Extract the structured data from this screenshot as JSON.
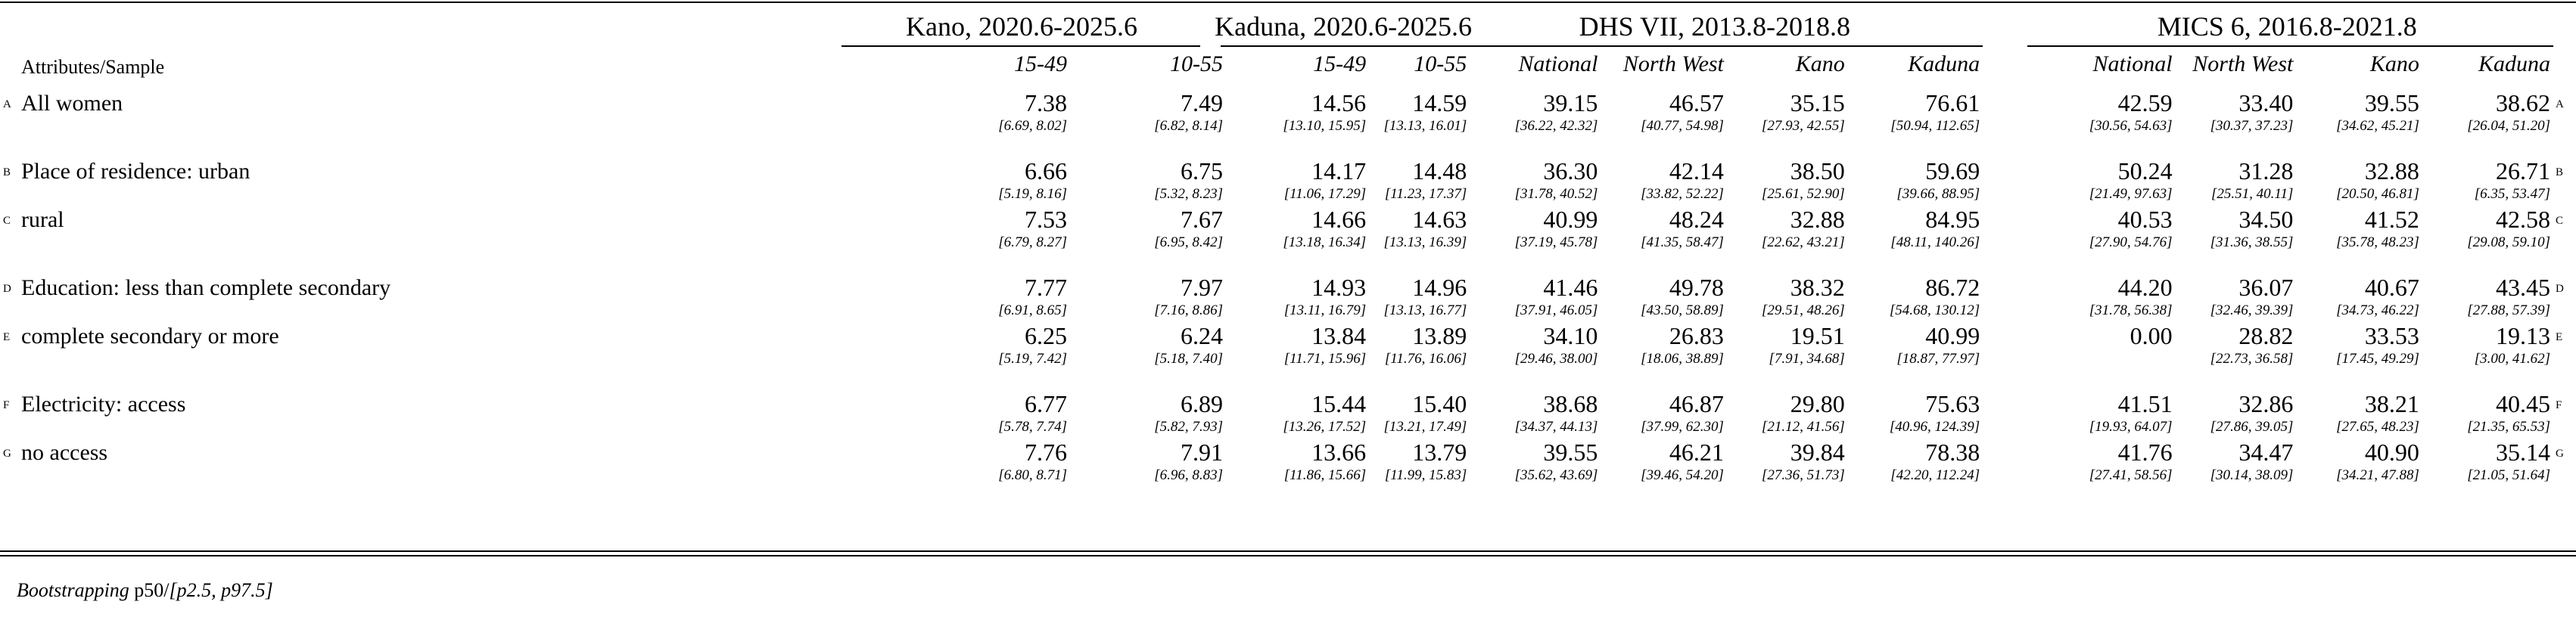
{
  "header": {
    "groups": [
      {
        "title": "Kano, 2020.6-2025.6",
        "subs": [
          "15-49",
          "10-55"
        ]
      },
      {
        "title": "Kaduna, 2020.6-2025.6",
        "subs": [
          "15-49",
          "10-55"
        ]
      },
      {
        "title": "DHS VII, 2013.8-2018.8",
        "subs": [
          "National",
          "North West",
          "Kano",
          "Kaduna"
        ]
      },
      {
        "title": "MICS 6, 2016.8-2021.8",
        "subs": [
          "National",
          "North West",
          "Kano",
          "Kaduna"
        ]
      }
    ],
    "attr_label": "Attributes/Sample"
  },
  "rows": [
    {
      "tag": "A",
      "label": "All women",
      "values": [
        "7.38",
        "7.49",
        "14.56",
        "14.59",
        "39.15",
        "46.57",
        "35.15",
        "76.61",
        "42.59",
        "33.40",
        "39.55",
        "38.62"
      ],
      "cis": [
        "[6.69, 8.02]",
        "[6.82, 8.14]",
        "[13.10, 15.95]",
        "[13.13, 16.01]",
        "[36.22, 42.32]",
        "[40.77, 54.98]",
        "[27.93, 42.55]",
        "[50.94, 112.65]",
        "[30.56, 54.63]",
        "[30.37, 37.23]",
        "[34.62, 45.21]",
        "[26.04, 51.20]"
      ]
    },
    {
      "tag": "B",
      "label": "Place of residence: urban",
      "values": [
        "6.66",
        "6.75",
        "14.17",
        "14.48",
        "36.30",
        "42.14",
        "38.50",
        "59.69",
        "50.24",
        "31.28",
        "32.88",
        "26.71"
      ],
      "cis": [
        "[5.19, 8.16]",
        "[5.32, 8.23]",
        "[11.06, 17.29]",
        "[11.23, 17.37]",
        "[31.78, 40.52]",
        "[33.82, 52.22]",
        "[25.61, 52.90]",
        "[39.66, 88.95]",
        "[21.49, 97.63]",
        "[25.51, 40.11]",
        "[20.50, 46.81]",
        "[6.35, 53.47]"
      ]
    },
    {
      "tag": "C",
      "label": "rural",
      "values": [
        "7.53",
        "7.67",
        "14.66",
        "14.63",
        "40.99",
        "48.24",
        "32.88",
        "84.95",
        "40.53",
        "34.50",
        "41.52",
        "42.58"
      ],
      "cis": [
        "[6.79, 8.27]",
        "[6.95, 8.42]",
        "[13.18, 16.34]",
        "[13.13, 16.39]",
        "[37.19, 45.78]",
        "[41.35, 58.47]",
        "[22.62, 43.21]",
        "[48.11, 140.26]",
        "[27.90, 54.76]",
        "[31.36, 38.55]",
        "[35.78, 48.23]",
        "[29.08, 59.10]"
      ]
    },
    {
      "tag": "D",
      "label": "Education: less than complete secondary",
      "values": [
        "7.77",
        "7.97",
        "14.93",
        "14.96",
        "41.46",
        "49.78",
        "38.32",
        "86.72",
        "44.20",
        "36.07",
        "40.67",
        "43.45"
      ],
      "cis": [
        "[6.91, 8.65]",
        "[7.16, 8.86]",
        "[13.11, 16.79]",
        "[13.13, 16.77]",
        "[37.91, 46.05]",
        "[43.50, 58.89]",
        "[29.51, 48.26]",
        "[54.68, 130.12]",
        "[31.78, 56.38]",
        "[32.46, 39.39]",
        "[34.73, 46.22]",
        "[27.88, 57.39]"
      ]
    },
    {
      "tag": "E",
      "label": "complete secondary or more",
      "values": [
        "6.25",
        "6.24",
        "13.84",
        "13.89",
        "34.10",
        "26.83",
        "19.51",
        "40.99",
        "0.00",
        "28.82",
        "33.53",
        "19.13"
      ],
      "cis": [
        "[5.19, 7.42]",
        "[5.18, 7.40]",
        "[11.71, 15.96]",
        "[11.76, 16.06]",
        "[29.46, 38.00]",
        "[18.06, 38.89]",
        "[7.91, 34.68]",
        "[18.87, 77.97]",
        "",
        "[22.73, 36.58]",
        "[17.45, 49.29]",
        "[3.00, 41.62]"
      ]
    },
    {
      "tag": "F",
      "label": "Electricity: access",
      "values": [
        "6.77",
        "6.89",
        "15.44",
        "15.40",
        "38.68",
        "46.87",
        "29.80",
        "75.63",
        "41.51",
        "32.86",
        "38.21",
        "40.45"
      ],
      "cis": [
        "[5.78, 7.74]",
        "[5.82, 7.93]",
        "[13.26, 17.52]",
        "[13.21, 17.49]",
        "[34.37, 44.13]",
        "[37.99, 62.30]",
        "[21.12, 41.56]",
        "[40.96, 124.39]",
        "[19.93, 64.07]",
        "[27.86, 39.05]",
        "[27.65, 48.23]",
        "[21.35, 65.53]"
      ]
    },
    {
      "tag": "G",
      "label": "no access",
      "values": [
        "7.76",
        "7.91",
        "13.66",
        "13.79",
        "39.55",
        "46.21",
        "39.84",
        "78.38",
        "41.76",
        "34.47",
        "40.90",
        "35.14"
      ],
      "cis": [
        "[6.80, 8.71]",
        "[6.96, 8.83]",
        "[11.86, 15.66]",
        "[11.99, 15.83]",
        "[35.62, 43.69]",
        "[39.46, 54.20]",
        "[27.36, 51.73]",
        "[42.20, 112.24]",
        "[27.41, 58.56]",
        "[30.14, 38.09]",
        "[34.21, 47.88]",
        "[21.05, 51.64]"
      ]
    }
  ],
  "footnote": {
    "prefix": "Bootstrapping",
    "main": " p50/",
    "suffix": "[p2.5, p97.5]"
  }
}
